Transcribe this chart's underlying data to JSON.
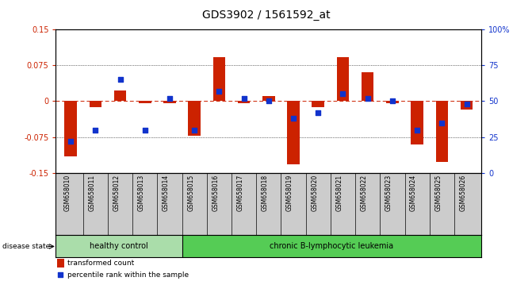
{
  "title": "GDS3902 / 1561592_at",
  "samples": [
    "GSM658010",
    "GSM658011",
    "GSM658012",
    "GSM658013",
    "GSM658014",
    "GSM658015",
    "GSM658016",
    "GSM658017",
    "GSM658018",
    "GSM658019",
    "GSM658020",
    "GSM658021",
    "GSM658022",
    "GSM658023",
    "GSM658024",
    "GSM658025",
    "GSM658026"
  ],
  "red_values": [
    -0.115,
    -0.012,
    0.022,
    -0.005,
    -0.005,
    -0.072,
    0.092,
    -0.005,
    0.01,
    -0.132,
    -0.012,
    0.092,
    0.06,
    -0.005,
    -0.09,
    -0.128,
    -0.018
  ],
  "blue_values": [
    22,
    30,
    65,
    30,
    52,
    30,
    57,
    52,
    50,
    38,
    42,
    55,
    52,
    50,
    30,
    35,
    48
  ],
  "ylim_left": [
    -0.15,
    0.15
  ],
  "ylim_right": [
    0,
    100
  ],
  "yticks_left": [
    -0.15,
    -0.075,
    0.0,
    0.075,
    0.15
  ],
  "ytick_labels_left": [
    "-0.15",
    "-0.075",
    "0",
    "0.075",
    "0.15"
  ],
  "yticks_right": [
    0,
    25,
    50,
    75,
    100
  ],
  "ytick_labels_right": [
    "0",
    "25",
    "50",
    "75",
    "100%"
  ],
  "healthy_count": 5,
  "group_labels": [
    "healthy control",
    "chronic B-lymphocytic leukemia"
  ],
  "bar_color": "#cc2200",
  "dot_color": "#1133cc",
  "bg_color": "#ffffff",
  "healthy_color": "#aaddaa",
  "leukemia_color": "#55cc55",
  "label_bg_color": "#cccccc",
  "disease_state_label": "disease state",
  "legend_red": "transformed count",
  "legend_blue": "percentile rank within the sample",
  "title_fontsize": 10,
  "tick_fontsize": 7,
  "bar_width": 0.5
}
